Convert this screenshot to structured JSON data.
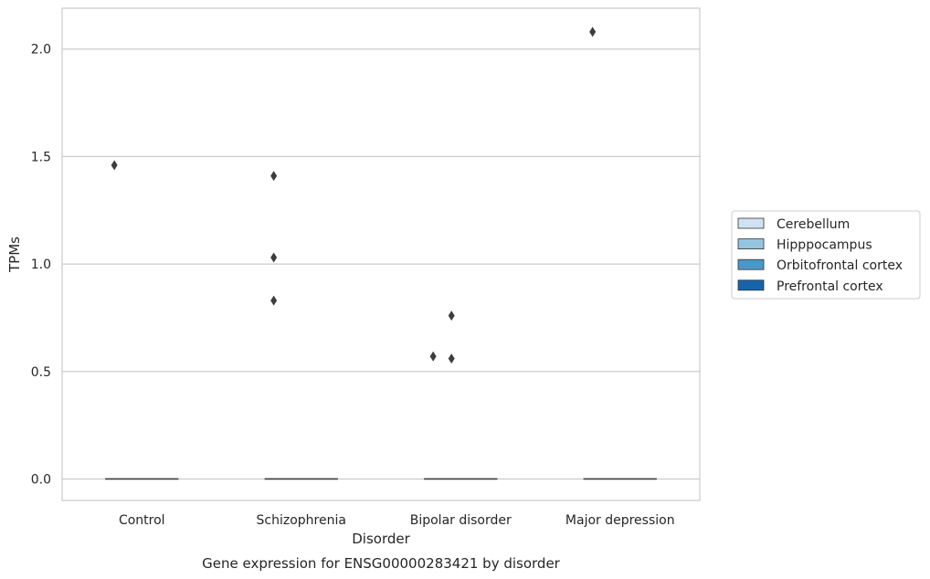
{
  "chart_data": {
    "type": "box",
    "title": "",
    "caption": "Gene expression for ENSG00000283421 by disorder",
    "xlabel": "Disorder",
    "ylabel": "TPMs",
    "ylim": [
      -0.1,
      2.19
    ],
    "yticks": [
      0.0,
      0.5,
      1.0,
      1.5,
      2.0
    ],
    "ytick_labels": [
      "0.0",
      "0.5",
      "1.0",
      "1.5",
      "2.0"
    ],
    "grid": true,
    "legend_position": "right",
    "categories": [
      "Control",
      "Schizophrenia",
      "Bipolar disorder",
      "Major depression"
    ],
    "series": [
      {
        "name": "Cerebellum",
        "color": "#d0e1f2"
      },
      {
        "name": "Hipppocampus",
        "color": "#94c4df"
      },
      {
        "name": "Orbitofrontal cortex",
        "color": "#4a98c9"
      },
      {
        "name": "Prefrontal cortex",
        "color": "#1764ab"
      }
    ],
    "medians": [
      0.0,
      0.0,
      0.0,
      0.0
    ],
    "outliers": [
      {
        "category": "Control",
        "series": "Cerebellum",
        "value": 1.46
      },
      {
        "category": "Schizophrenia",
        "series": "Cerebellum",
        "value": 1.41
      },
      {
        "category": "Schizophrenia",
        "series": "Cerebellum",
        "value": 1.03
      },
      {
        "category": "Schizophrenia",
        "series": "Cerebellum",
        "value": 0.83
      },
      {
        "category": "Bipolar disorder",
        "series": "Cerebellum",
        "value": 0.57
      },
      {
        "category": "Bipolar disorder",
        "series": "Hipppocampus",
        "value": 0.76
      },
      {
        "category": "Bipolar disorder",
        "series": "Hipppocampus",
        "value": 0.56
      },
      {
        "category": "Major depression",
        "series": "Cerebellum",
        "value": 2.08
      }
    ]
  }
}
